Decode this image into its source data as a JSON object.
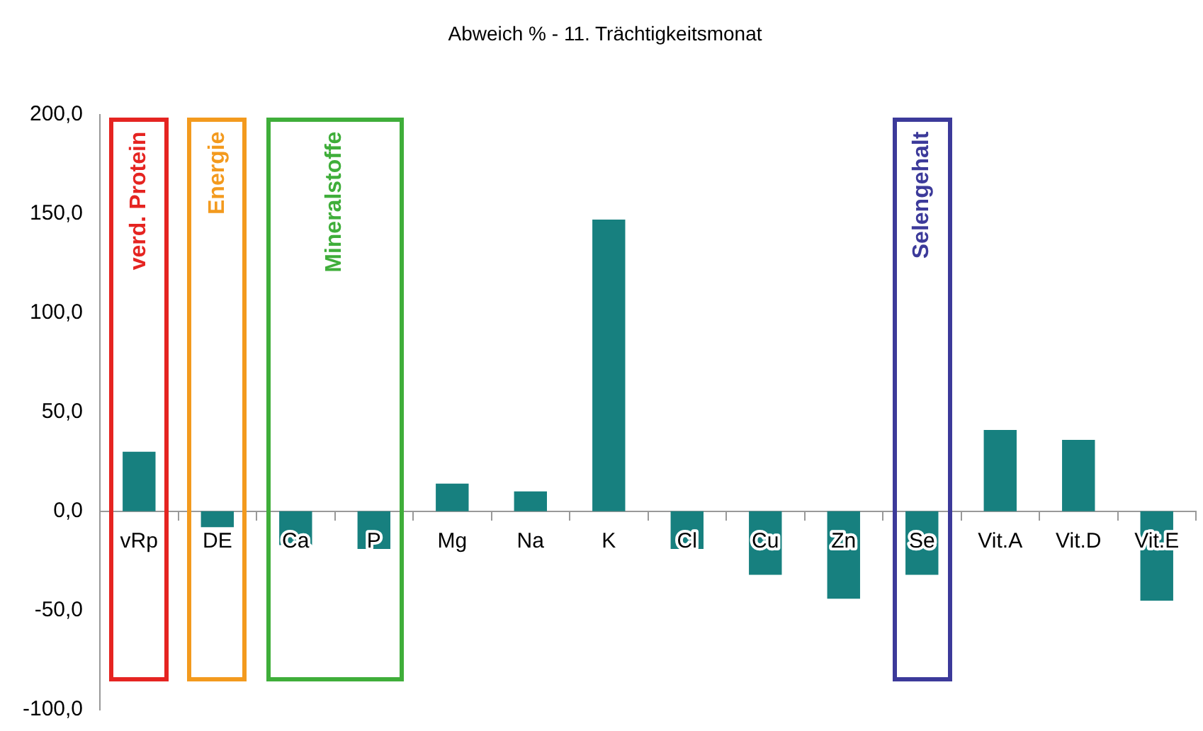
{
  "chart_data": {
    "type": "bar",
    "title": "Abweich % - 11. Trächtigkeitsmonat",
    "categories": [
      "vRp",
      "DE",
      "Ca",
      "P",
      "Mg",
      "Na",
      "K",
      "Cl",
      "Cu",
      "Zn",
      "Se",
      "Vit.A",
      "Vit.D",
      "Vit.E"
    ],
    "values": [
      30,
      -8,
      -17,
      -19,
      14,
      10,
      147,
      -19,
      -32,
      -44,
      -32,
      41,
      36,
      -45
    ],
    "color": "#17807f",
    "ylim": [
      -100,
      200
    ],
    "yticks": [
      {
        "value": -100,
        "label": "-100,0"
      },
      {
        "value": -50,
        "label": "-50,0"
      },
      {
        "value": 0,
        "label": "0,0"
      },
      {
        "value": 50,
        "label": "50,0"
      },
      {
        "value": 100,
        "label": "100,0"
      },
      {
        "value": 150,
        "label": "150,0"
      },
      {
        "value": 200,
        "label": "200,0"
      }
    ],
    "grid": false,
    "legend": false,
    "annotations": [
      "verd. Protein",
      "Energie",
      "Mineralstoffe",
      "Selengehalt"
    ]
  }
}
